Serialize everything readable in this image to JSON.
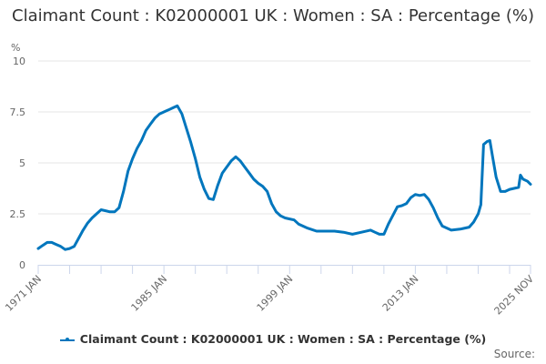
{
  "title": "Claimant Count : K02000001 UK : Women : SA : Percentage (%)",
  "legend": {
    "label": "Claimant Count : K02000001 UK : Women : SA : Percentage (%)"
  },
  "source_label": "Source:",
  "colors": {
    "series": "#0076BD",
    "grid": "#e6e6e6",
    "axis": "#ccd6eb",
    "text": "#666666"
  },
  "chart_data": {
    "type": "line",
    "title": "Claimant Count : K02000001 UK : Women : SA : Percentage (%)",
    "xlabel": "",
    "ylabel": "%",
    "ylim": [
      0,
      10
    ],
    "yticks": [
      0,
      2.5,
      5,
      7.5,
      10
    ],
    "ytick_labels": [
      "0",
      "2.5",
      "5",
      "7.5",
      "10"
    ],
    "xtick_labels": [
      "1971 JAN",
      "1985 JAN",
      "1999 JAN",
      "2013 JAN",
      "2025 NOV"
    ],
    "grid": true,
    "legend_position": "bottom",
    "series": [
      {
        "name": "Claimant Count : K02000001 UK : Women : SA : Percentage (%)",
        "x": [
          1971.0,
          1971.5,
          1972.0,
          1972.5,
          1973.0,
          1973.5,
          1974.0,
          1974.5,
          1975.0,
          1975.5,
          1976.0,
          1976.5,
          1977.0,
          1977.5,
          1978.0,
          1978.5,
          1979.0,
          1979.5,
          1980.0,
          1980.5,
          1981.0,
          1981.5,
          1982.0,
          1982.5,
          1983.0,
          1983.5,
          1984.0,
          1984.5,
          1985.0,
          1985.5,
          1986.0,
          1986.5,
          1987.0,
          1987.5,
          1988.0,
          1988.5,
          1989.0,
          1989.5,
          1990.0,
          1990.5,
          1991.0,
          1991.5,
          1992.0,
          1992.5,
          1993.0,
          1993.5,
          1994.0,
          1994.5,
          1995.0,
          1995.5,
          1996.0,
          1996.5,
          1997.0,
          1997.5,
          1998.0,
          1998.5,
          1999.0,
          1999.5,
          2000.0,
          2001.0,
          2002.0,
          2003.0,
          2004.0,
          2005.0,
          2006.0,
          2007.0,
          2008.0,
          2008.5,
          2009.0,
          2009.5,
          2010.0,
          2011.0,
          2011.5,
          2012.0,
          2012.5,
          2013.0,
          2013.5,
          2014.0,
          2014.5,
          2015.0,
          2015.5,
          2016.0,
          2017.0,
          2018.0,
          2019.0,
          2019.5,
          2020.0,
          2020.2,
          2020.3,
          2020.6,
          2021.0,
          2021.3,
          2021.6,
          2022.0,
          2022.5,
          2023.0,
          2023.5,
          2024.0,
          2024.5,
          2024.7,
          2025.0,
          2025.5,
          2025.83
        ],
        "values": [
          0.8,
          0.95,
          1.1,
          1.1,
          1.0,
          0.9,
          0.75,
          0.8,
          0.9,
          1.3,
          1.7,
          2.05,
          2.3,
          2.5,
          2.7,
          2.65,
          2.6,
          2.6,
          2.8,
          3.6,
          4.6,
          5.2,
          5.7,
          6.1,
          6.6,
          6.9,
          7.2,
          7.4,
          7.5,
          7.6,
          7.7,
          7.8,
          7.4,
          6.7,
          6.0,
          5.2,
          4.3,
          3.7,
          3.25,
          3.2,
          3.9,
          4.5,
          4.8,
          5.1,
          5.3,
          5.1,
          4.8,
          4.5,
          4.2,
          4.0,
          3.85,
          3.6,
          3.0,
          2.6,
          2.4,
          2.3,
          2.25,
          2.2,
          2.0,
          1.8,
          1.65,
          1.65,
          1.65,
          1.6,
          1.5,
          1.6,
          1.7,
          1.6,
          1.5,
          1.5,
          2.0,
          2.85,
          2.9,
          3.0,
          3.3,
          3.45,
          3.4,
          3.45,
          3.2,
          2.8,
          2.3,
          1.9,
          1.7,
          1.75,
          1.85,
          2.1,
          2.5,
          2.8,
          2.95,
          5.9,
          6.05,
          6.1,
          5.3,
          4.3,
          3.6,
          3.6,
          3.7,
          3.75,
          3.8,
          4.4,
          4.2,
          4.1,
          3.95
        ]
      }
    ]
  }
}
